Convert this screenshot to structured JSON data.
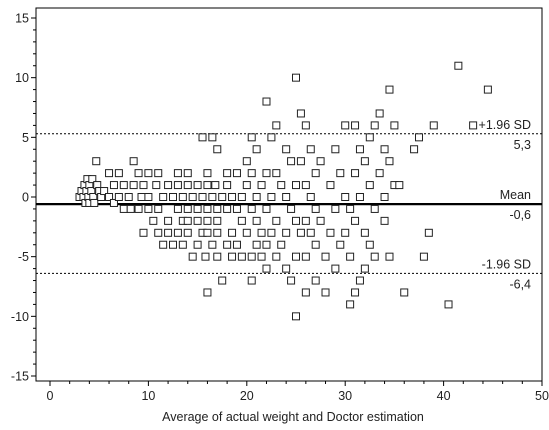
{
  "chart_data": {
    "type": "scatter",
    "title": "",
    "xlabel": "Average of actual weight and Doctor estimation",
    "ylabel": "",
    "xlim": [
      0,
      50
    ],
    "ylim": [
      -15,
      15
    ],
    "xticks": [
      "0",
      "10",
      "20",
      "30",
      "40",
      "50"
    ],
    "yticks": [
      "15",
      "10",
      "5",
      "0",
      "-5",
      "-10",
      "-15"
    ],
    "grid": false,
    "legend": "none",
    "marker": "open-square",
    "reference_lines": [
      {
        "label": "+1.96 SD",
        "value": 5.3,
        "value_label": "5,3",
        "style": "dotted"
      },
      {
        "label": "Mean",
        "value": -0.6,
        "value_label": "-0,6",
        "style": "solid"
      },
      {
        "label": "-1.96 SD",
        "value": -6.4,
        "value_label": "-6,4",
        "style": "dotted"
      }
    ],
    "points": [
      [
        3,
        0
      ],
      [
        3.2,
        0.5
      ],
      [
        3.4,
        0
      ],
      [
        3.5,
        1
      ],
      [
        3.6,
        -0.5
      ],
      [
        3.7,
        0.5
      ],
      [
        3.8,
        1.5
      ],
      [
        3.9,
        0
      ],
      [
        4,
        1
      ],
      [
        4,
        -0.5
      ],
      [
        4.2,
        0.5
      ],
      [
        4.3,
        1.5
      ],
      [
        4.4,
        0
      ],
      [
        4.5,
        -0.5
      ],
      [
        4.7,
        3
      ],
      [
        4.8,
        1
      ],
      [
        5,
        0.5
      ],
      [
        5.2,
        0
      ],
      [
        5.5,
        0.5
      ],
      [
        6,
        2
      ],
      [
        6,
        0
      ],
      [
        6.5,
        1
      ],
      [
        6.5,
        -0.5
      ],
      [
        7,
        2
      ],
      [
        7,
        0
      ],
      [
        7.5,
        1
      ],
      [
        7.5,
        -1
      ],
      [
        8,
        0
      ],
      [
        8.2,
        -1
      ],
      [
        8.5,
        3
      ],
      [
        8.5,
        1
      ],
      [
        9,
        2
      ],
      [
        9,
        -1
      ],
      [
        9.3,
        0
      ],
      [
        9.5,
        1
      ],
      [
        9.5,
        -3
      ],
      [
        10,
        2
      ],
      [
        10,
        0
      ],
      [
        10,
        -1
      ],
      [
        10.5,
        -2
      ],
      [
        10.8,
        1
      ],
      [
        11,
        2
      ],
      [
        11,
        -1
      ],
      [
        11,
        -3
      ],
      [
        11.5,
        0
      ],
      [
        11.5,
        -4
      ],
      [
        12,
        1
      ],
      [
        12,
        -2
      ],
      [
        12,
        -3
      ],
      [
        12.5,
        0
      ],
      [
        12.5,
        -4
      ],
      [
        13,
        2
      ],
      [
        13,
        1
      ],
      [
        13,
        -1
      ],
      [
        13,
        -3
      ],
      [
        13.5,
        0
      ],
      [
        13.5,
        -2
      ],
      [
        13.5,
        -4
      ],
      [
        14,
        2
      ],
      [
        14,
        1
      ],
      [
        14,
        -1
      ],
      [
        14,
        -2
      ],
      [
        14,
        -3
      ],
      [
        14.5,
        0
      ],
      [
        14.5,
        -5
      ],
      [
        15,
        1
      ],
      [
        15,
        -1
      ],
      [
        15,
        -2
      ],
      [
        15,
        -4
      ],
      [
        15.5,
        0
      ],
      [
        15.5,
        -3
      ],
      [
        15.5,
        5
      ],
      [
        15.8,
        -5
      ],
      [
        16,
        2
      ],
      [
        16,
        1
      ],
      [
        16,
        -1
      ],
      [
        16,
        -2
      ],
      [
        16,
        -3
      ],
      [
        16,
        -8
      ],
      [
        16.5,
        5
      ],
      [
        16.5,
        0
      ],
      [
        16.5,
        -4
      ],
      [
        16.8,
        1
      ],
      [
        17,
        4
      ],
      [
        17,
        -1
      ],
      [
        17,
        -2
      ],
      [
        17,
        -3
      ],
      [
        17,
        -5
      ],
      [
        17.5,
        0
      ],
      [
        17.5,
        -7
      ],
      [
        18,
        2
      ],
      [
        18,
        1
      ],
      [
        18,
        -1
      ],
      [
        18,
        -4
      ],
      [
        18.5,
        0
      ],
      [
        18.5,
        -3
      ],
      [
        18.5,
        -5
      ],
      [
        19,
        2
      ],
      [
        19,
        -1
      ],
      [
        19,
        -4
      ],
      [
        19.5,
        0
      ],
      [
        19.5,
        -2
      ],
      [
        19.5,
        -5
      ],
      [
        20,
        3
      ],
      [
        20,
        1
      ],
      [
        20,
        -3
      ],
      [
        20.5,
        5
      ],
      [
        20.5,
        2
      ],
      [
        20.5,
        -1
      ],
      [
        20.5,
        -5
      ],
      [
        20.5,
        -7
      ],
      [
        21,
        4
      ],
      [
        21,
        0
      ],
      [
        21,
        -2
      ],
      [
        21,
        -4
      ],
      [
        21.5,
        1
      ],
      [
        21.5,
        -3
      ],
      [
        21.5,
        -5
      ],
      [
        22,
        8
      ],
      [
        22,
        2
      ],
      [
        22,
        -1
      ],
      [
        22,
        -4
      ],
      [
        22,
        -6
      ],
      [
        22.5,
        5
      ],
      [
        22.5,
        0
      ],
      [
        22.5,
        -3
      ],
      [
        23,
        6
      ],
      [
        23,
        2
      ],
      [
        23,
        -2
      ],
      [
        23,
        -5
      ],
      [
        23.5,
        1
      ],
      [
        23.5,
        -4
      ],
      [
        24,
        4
      ],
      [
        24,
        0
      ],
      [
        24,
        -3
      ],
      [
        24,
        -6
      ],
      [
        24.5,
        3
      ],
      [
        24.5,
        -1
      ],
      [
        24.5,
        -7
      ],
      [
        25,
        10
      ],
      [
        25,
        1
      ],
      [
        25,
        -2
      ],
      [
        25,
        -5
      ],
      [
        25,
        -10
      ],
      [
        25.5,
        7
      ],
      [
        25.5,
        3
      ],
      [
        25.5,
        -3
      ],
      [
        26,
        6
      ],
      [
        26,
        1
      ],
      [
        26,
        -2
      ],
      [
        26,
        -5
      ],
      [
        26,
        -8
      ],
      [
        26.5,
        4
      ],
      [
        26.5,
        0
      ],
      [
        26.5,
        -3
      ],
      [
        27,
        2
      ],
      [
        27,
        -1
      ],
      [
        27,
        -4
      ],
      [
        27,
        -7
      ],
      [
        27.5,
        3
      ],
      [
        27.5,
        -2
      ],
      [
        28,
        -8
      ],
      [
        28,
        -5
      ],
      [
        28.5,
        1
      ],
      [
        28.5,
        -3
      ],
      [
        29,
        4
      ],
      [
        29,
        -1
      ],
      [
        29,
        -6
      ],
      [
        29.5,
        2
      ],
      [
        29.5,
        -4
      ],
      [
        30,
        6
      ],
      [
        30,
        0
      ],
      [
        30,
        -3
      ],
      [
        30.5,
        -9
      ],
      [
        30.5,
        -5
      ],
      [
        30.5,
        -1
      ],
      [
        31,
        6
      ],
      [
        31,
        2
      ],
      [
        31,
        -2
      ],
      [
        31,
        -8
      ],
      [
        31.5,
        4
      ],
      [
        31.5,
        0
      ],
      [
        31.5,
        -7
      ],
      [
        32,
        3
      ],
      [
        32,
        -3
      ],
      [
        32,
        -6
      ],
      [
        32.5,
        5
      ],
      [
        32.5,
        1
      ],
      [
        32.5,
        -4
      ],
      [
        33,
        6
      ],
      [
        33,
        -1
      ],
      [
        33,
        -5
      ],
      [
        33.5,
        7
      ],
      [
        33.5,
        2
      ],
      [
        34,
        4
      ],
      [
        34,
        0
      ],
      [
        34,
        -2
      ],
      [
        34.5,
        9
      ],
      [
        34.5,
        3
      ],
      [
        34.5,
        -5
      ],
      [
        35,
        6
      ],
      [
        35,
        1
      ],
      [
        35.5,
        1
      ],
      [
        36,
        -8
      ],
      [
        37,
        4
      ],
      [
        37.5,
        5
      ],
      [
        38,
        -5
      ],
      [
        38.5,
        -3
      ],
      [
        39,
        6
      ],
      [
        40.5,
        -9
      ],
      [
        41.5,
        11
      ],
      [
        43,
        6
      ],
      [
        44.5,
        9
      ]
    ]
  }
}
